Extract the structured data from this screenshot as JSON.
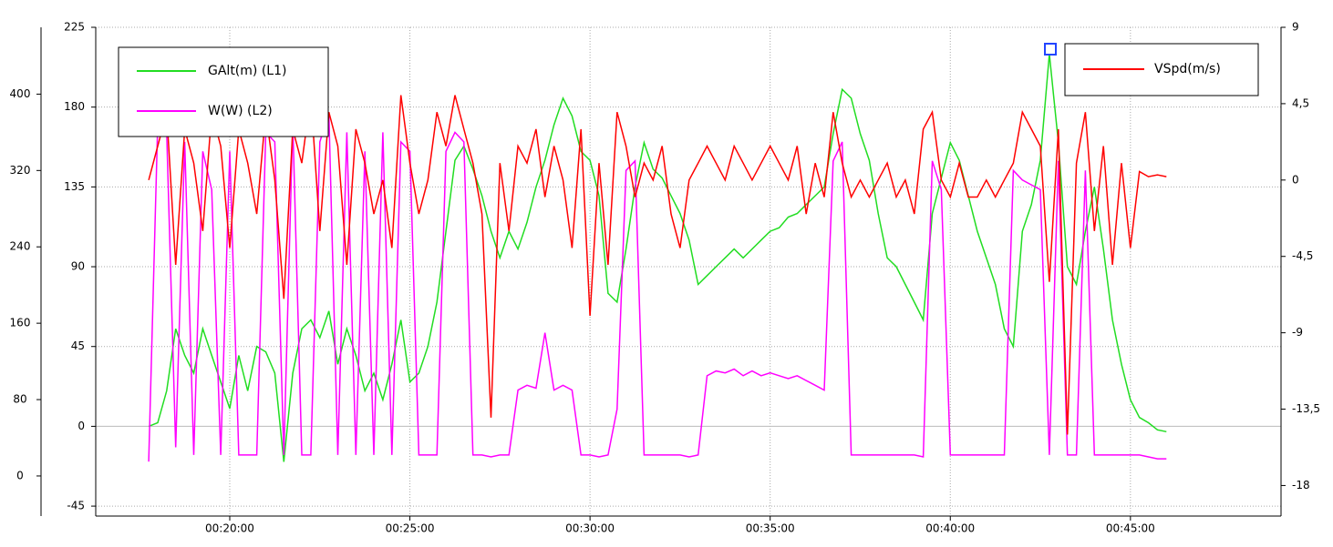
{
  "chart_data": {
    "type": "line",
    "grid": true,
    "x": [
      17.75,
      18,
      18.25,
      18.5,
      18.75,
      19,
      19.25,
      19.5,
      19.75,
      20,
      20.25,
      20.5,
      20.75,
      21,
      21.25,
      21.5,
      21.75,
      22,
      22.25,
      22.5,
      22.75,
      23,
      23.25,
      23.5,
      23.75,
      24,
      24.25,
      24.5,
      24.75,
      25,
      25.25,
      25.5,
      25.75,
      26,
      26.25,
      26.5,
      26.75,
      27,
      27.25,
      27.5,
      27.75,
      28,
      28.25,
      28.5,
      28.75,
      29,
      29.25,
      29.5,
      29.75,
      30,
      30.25,
      30.5,
      30.75,
      31,
      31.25,
      31.5,
      31.75,
      32,
      32.25,
      32.5,
      32.75,
      33,
      33.25,
      33.5,
      33.75,
      34,
      34.25,
      34.5,
      34.75,
      35,
      35.25,
      35.5,
      35.75,
      36,
      36.25,
      36.5,
      36.75,
      37,
      37.25,
      37.5,
      37.75,
      38,
      38.25,
      38.5,
      38.75,
      39,
      39.25,
      39.5,
      39.75,
      40,
      40.25,
      40.5,
      40.75,
      41,
      41.25,
      41.5,
      41.75,
      42,
      42.25,
      42.5,
      42.75,
      43,
      43.25,
      43.5,
      43.75,
      44,
      44.25,
      44.5,
      44.75,
      45,
      45.25,
      45.5,
      45.75,
      46
    ],
    "xlim": [
      16.28,
      49.18
    ],
    "xticks": [
      {
        "value": 20,
        "label": "00:20:00"
      },
      {
        "value": 25,
        "label": "00:25:00"
      },
      {
        "value": 30,
        "label": "00:30:00"
      },
      {
        "value": 35,
        "label": "00:35:00"
      },
      {
        "value": 40,
        "label": "00:40:00"
      },
      {
        "value": 45,
        "label": "00:45:00"
      }
    ],
    "ylim": [
      -50.6,
      225
    ],
    "yticks": [
      -45,
      0,
      45,
      90,
      135,
      180,
      225
    ],
    "y2lim": [
      -19.8,
      9
    ],
    "y2ticks": [
      {
        "value": -18,
        "label": "-18"
      },
      {
        "value": -13.5,
        "label": "-13,5"
      },
      {
        "value": -9,
        "label": "-9"
      },
      {
        "value": -4.5,
        "label": "-4,5"
      },
      0,
      {
        "value": 4.5,
        "label": "4,5"
      },
      9
    ],
    "y3lim": [
      -42,
      470
    ],
    "y3ticks": [
      0,
      80,
      160,
      240,
      320,
      400
    ],
    "series": [
      {
        "name": "GAlt(m) (L1)",
        "color": "#22dd22",
        "axis": "y",
        "values": [
          0,
          2,
          20,
          55,
          40,
          30,
          55,
          40,
          25,
          10,
          40,
          20,
          45,
          42,
          30,
          -20,
          30,
          55,
          60,
          50,
          65,
          35,
          55,
          40,
          20,
          30,
          15,
          35,
          60,
          25,
          30,
          45,
          70,
          110,
          150,
          158,
          145,
          130,
          110,
          95,
          110,
          100,
          115,
          135,
          150,
          170,
          185,
          175,
          155,
          150,
          130,
          75,
          70,
          100,
          135,
          160,
          145,
          140,
          130,
          120,
          105,
          80,
          85,
          90,
          95,
          100,
          95,
          100,
          105,
          110,
          112,
          118,
          120,
          125,
          130,
          135,
          165,
          190,
          185,
          165,
          150,
          120,
          95,
          90,
          80,
          70,
          60,
          120,
          140,
          160,
          150,
          130,
          110,
          95,
          80,
          55,
          45,
          110,
          125,
          150,
          210,
          160,
          90,
          80,
          110,
          135,
          100,
          60,
          35,
          15,
          5,
          2,
          -2,
          -3
        ]
      },
      {
        "name": "W(W) (L2)",
        "color": "#ff00ff",
        "axis": "y3",
        "values": [
          15,
          370,
          360,
          30,
          350,
          22,
          340,
          300,
          22,
          340,
          22,
          22,
          22,
          360,
          350,
          22,
          370,
          22,
          22,
          350,
          380,
          22,
          360,
          22,
          340,
          22,
          360,
          22,
          350,
          340,
          22,
          22,
          22,
          340,
          360,
          350,
          22,
          22,
          20,
          22,
          22,
          90,
          95,
          92,
          150,
          90,
          95,
          90,
          22,
          22,
          20,
          22,
          70,
          320,
          330,
          22,
          22,
          22,
          22,
          22,
          20,
          22,
          105,
          110,
          108,
          112,
          105,
          110,
          105,
          108,
          105,
          102,
          105,
          100,
          95,
          90,
          330,
          350,
          22,
          22,
          22,
          22,
          22,
          22,
          22,
          22,
          20,
          330,
          300,
          22,
          22,
          22,
          22,
          22,
          22,
          22,
          320,
          310,
          305,
          300,
          22,
          330,
          22,
          22,
          320,
          22,
          22,
          22,
          22,
          22,
          22,
          20,
          18,
          18
        ]
      },
      {
        "name": "VSpd(m/s)",
        "color": "#ff0000",
        "axis": "y2",
        "values": [
          0,
          2,
          4,
          -5,
          3,
          1,
          -3,
          4,
          2,
          -4,
          3,
          1,
          -2,
          4,
          0,
          -7,
          3,
          1,
          5,
          -3,
          4,
          2,
          -5,
          3,
          1,
          -2,
          0,
          -4,
          5,
          1,
          -2,
          0,
          4,
          2,
          5,
          3,
          1,
          -2,
          -14,
          1,
          -3,
          2,
          1,
          3,
          -1,
          2,
          0,
          -4,
          3,
          -8,
          1,
          -5,
          4,
          2,
          -1,
          1,
          0,
          2,
          -2,
          -4,
          0,
          1,
          2,
          1,
          0,
          2,
          1,
          0,
          1,
          2,
          1,
          0,
          2,
          -2,
          1,
          -1,
          4,
          1,
          -1,
          0,
          -1,
          0,
          1,
          -1,
          0,
          -2,
          3,
          4,
          0,
          -1,
          1,
          -1,
          -1,
          0,
          -1,
          0,
          1,
          4,
          3,
          2,
          -6,
          3,
          -15,
          1,
          4,
          -3,
          2,
          -5,
          1,
          -4,
          0.5,
          0.2,
          0.3,
          0.2
        ]
      }
    ]
  }
}
